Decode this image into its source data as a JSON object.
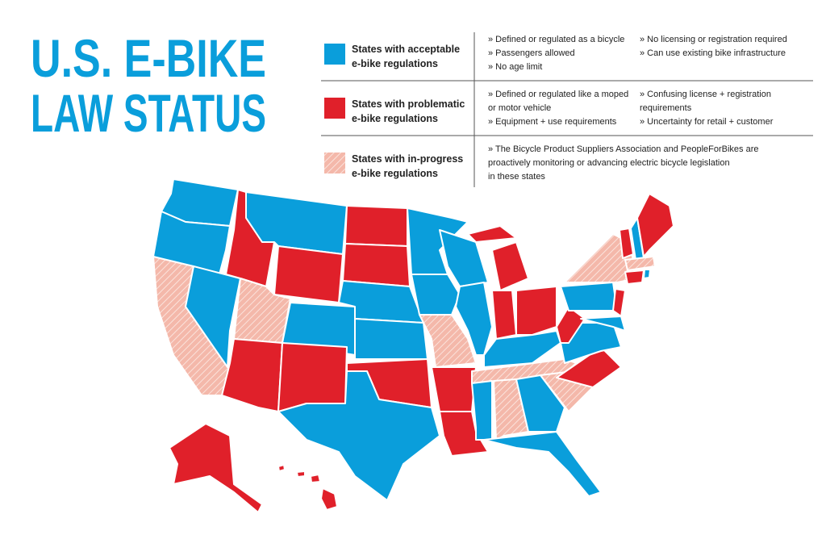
{
  "title": [
    "U.S. E-BIKE",
    "LAW STATUS"
  ],
  "legend": [
    {
      "label": [
        "States with acceptable",
        "e-bike regulations"
      ],
      "notes": [
        [
          "» Defined or regulated as a bicycle",
          "» Passengers allowed",
          "» No age limit"
        ],
        [
          "» No licensing or registration required",
          "» Can use existing bike infrastructure"
        ]
      ]
    },
    {
      "label": [
        "States with problematic",
        "e-bike regulations"
      ],
      "notes": [
        [
          "» Defined or regulated like a moped",
          "or motor vehicle",
          "» Equipment + use requirements"
        ],
        [
          "» Confusing license + registration",
          "requirements",
          "» Uncertainty for retail + customer"
        ]
      ]
    },
    {
      "label": [
        "States with in-progress",
        "e-bike regulations"
      ],
      "notes": [
        [
          "» The Bicycle Product Suppliers Association and PeopleForBikes are",
          "proactively monitoring or advancing electric bicycle legislation",
          "in these states"
        ]
      ]
    }
  ]
}
